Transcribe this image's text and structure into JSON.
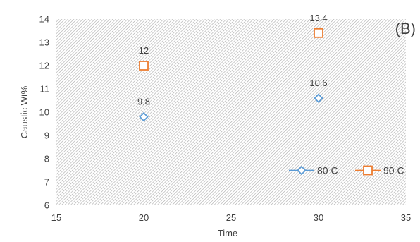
{
  "chart_data": {
    "type": "scatter",
    "panel_label": "(B)",
    "xlabel": "Time",
    "ylabel": "Caustic  Wt%",
    "xlim": [
      15,
      35
    ],
    "ylim": [
      6,
      14
    ],
    "x_ticks": [
      15,
      20,
      25,
      30,
      35
    ],
    "y_ticks": [
      6,
      7,
      8,
      9,
      10,
      11,
      12,
      13,
      14
    ],
    "legend_position": "bottom-right",
    "background_pattern": "diagonal-hatch",
    "series": [
      {
        "name": "80 C",
        "marker": "diamond",
        "color": "#5b9bd5",
        "points": [
          {
            "x": 20,
            "y": 9.8,
            "label": "9.8"
          },
          {
            "x": 30,
            "y": 10.6,
            "label": "10.6"
          }
        ]
      },
      {
        "name": "90 C",
        "marker": "square",
        "color": "#ed7d31",
        "points": [
          {
            "x": 20,
            "y": 12,
            "label": "12"
          },
          {
            "x": 30,
            "y": 13.4,
            "label": "13.4"
          }
        ]
      }
    ]
  }
}
